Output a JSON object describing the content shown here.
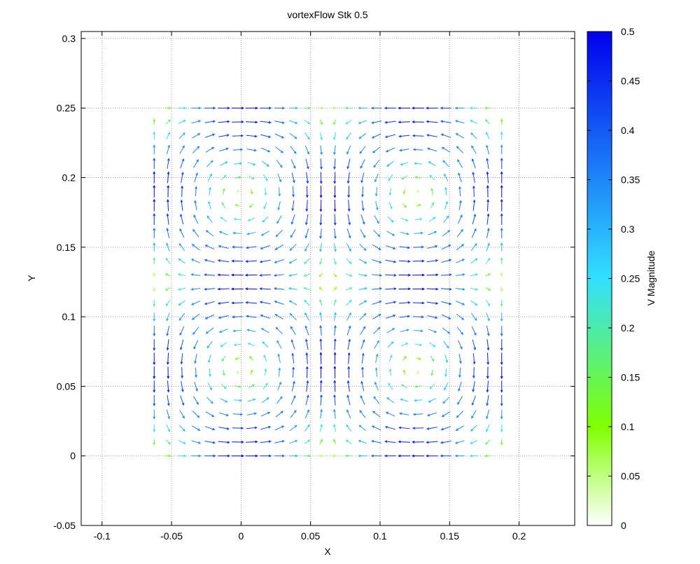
{
  "chart_data": {
    "type": "quiver",
    "title": "vortexFlow Stk 0.5",
    "xlabel": "X",
    "ylabel": "Y",
    "xlim": [
      -0.115,
      0.24
    ],
    "ylim": [
      -0.05,
      0.305
    ],
    "x_ticks": [
      -0.1,
      -0.05,
      0,
      0.05,
      0.1,
      0.15,
      0.2
    ],
    "x_tick_labels": [
      "-0.1",
      "-0.05",
      "0",
      "0.05",
      "0.1",
      "0.15",
      "0.2"
    ],
    "y_ticks": [
      -0.05,
      0,
      0.05,
      0.1,
      0.15,
      0.2,
      0.25,
      0.3
    ],
    "y_tick_labels": [
      "-0.05",
      "0",
      "0.05",
      "0.1",
      "0.15",
      "0.2",
      "0.25",
      "0.3"
    ],
    "grid": true,
    "field": {
      "description": "Four-cell vortex velocity field on a regular grid",
      "x_range": [
        -0.0625,
        0.1875
      ],
      "y_range": [
        0,
        0.25
      ],
      "vortex_centers": [
        [
          0,
          0.0625
        ],
        [
          0.125,
          0.0625
        ],
        [
          0,
          0.1875
        ],
        [
          0.125,
          0.1875
        ]
      ],
      "cell_size": 0.125,
      "grid_points": 26,
      "max_magnitude": 0.5
    },
    "colorbar": {
      "label": "V Magnitude",
      "range": [
        0,
        0.5
      ],
      "ticks": [
        0,
        0.05,
        0.1,
        0.15,
        0.2,
        0.25,
        0.3,
        0.35,
        0.4,
        0.45,
        0.5
      ],
      "tick_labels": [
        "0",
        "0.05",
        "0.1",
        "0.15",
        "0.2",
        "0.25",
        "0.3",
        "0.35",
        "0.4",
        "0.45",
        "0.5"
      ],
      "color_stops": [
        {
          "value": 0,
          "color": "#ffffff"
        },
        {
          "value": 0.1,
          "color": "#80ff00"
        },
        {
          "value": 0.25,
          "color": "#33e0ff"
        },
        {
          "value": 0.5,
          "color": "#0000ee"
        }
      ]
    }
  }
}
